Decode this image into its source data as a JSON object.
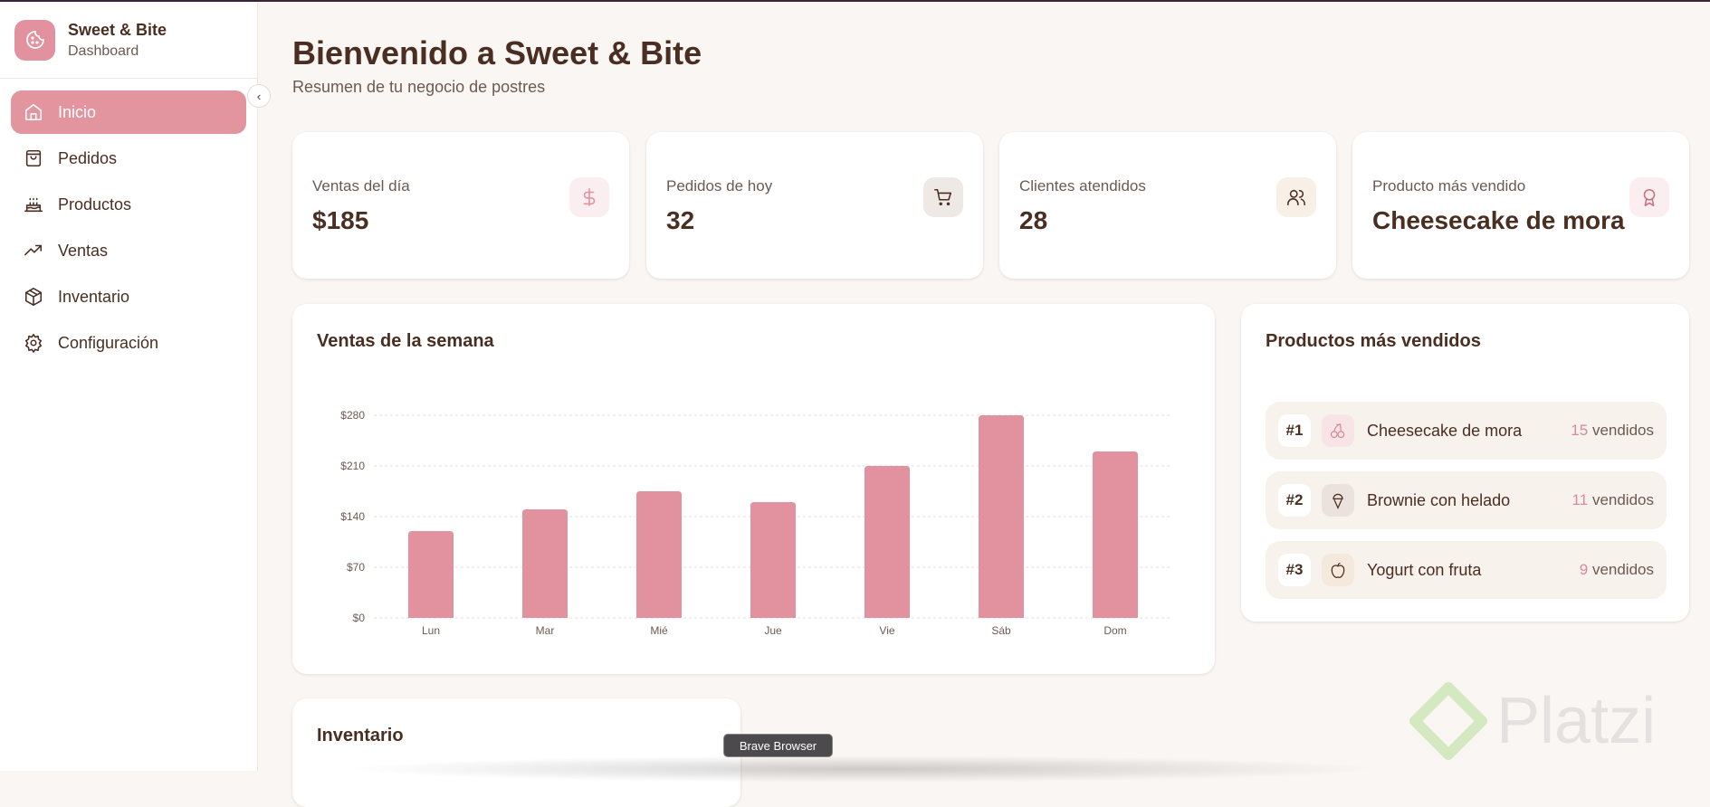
{
  "brand": {
    "title": "Sweet & Bite",
    "subtitle": "Dashboard"
  },
  "nav": [
    {
      "label": "Inicio",
      "icon": "home-icon",
      "active": true
    },
    {
      "label": "Pedidos",
      "icon": "shopping-bag-icon"
    },
    {
      "label": "Productos",
      "icon": "cake-icon"
    },
    {
      "label": "Ventas",
      "icon": "trending-up-icon"
    },
    {
      "label": "Inventario",
      "icon": "package-icon"
    },
    {
      "label": "Configuración",
      "icon": "gear-icon"
    }
  ],
  "header": {
    "title": "Bienvenido a Sweet & Bite",
    "subtitle": "Resumen de tu negocio de postres"
  },
  "stats": [
    {
      "label": "Ventas del día",
      "value": "$185",
      "icon": "dollar-icon"
    },
    {
      "label": "Pedidos de hoy",
      "value": "32",
      "icon": "cart-icon"
    },
    {
      "label": "Clientes atendidos",
      "value": "28",
      "icon": "users-icon"
    },
    {
      "label": "Producto más vendido",
      "value": "Cheesecake de mora",
      "icon": "award-icon"
    }
  ],
  "chart_data": {
    "type": "bar",
    "title": "Ventas de la semana",
    "categories": [
      "Lun",
      "Mar",
      "Mié",
      "Jue",
      "Vie",
      "Sáb",
      "Dom"
    ],
    "values": [
      120,
      150,
      175,
      160,
      210,
      280,
      230
    ],
    "yticks": [
      "$0",
      "$70",
      "$140",
      "$210",
      "$280"
    ],
    "ylim": [
      0,
      280
    ],
    "grid": true,
    "color": "#e2929f"
  },
  "top_products": {
    "title": "Productos más vendidos",
    "unit": "vendidos",
    "items": [
      {
        "rank": "#1",
        "name": "Cheesecake de mora",
        "count": "15",
        "icon": "cherry-icon"
      },
      {
        "rank": "#2",
        "name": "Brownie con helado",
        "count": "11",
        "icon": "ice-cream-icon"
      },
      {
        "rank": "#3",
        "name": "Yogurt con fruta",
        "count": "9",
        "icon": "apple-icon"
      }
    ]
  },
  "inventory": {
    "title": "Inventario"
  },
  "tooltip": "Brave Browser",
  "watermark": "Platzi"
}
